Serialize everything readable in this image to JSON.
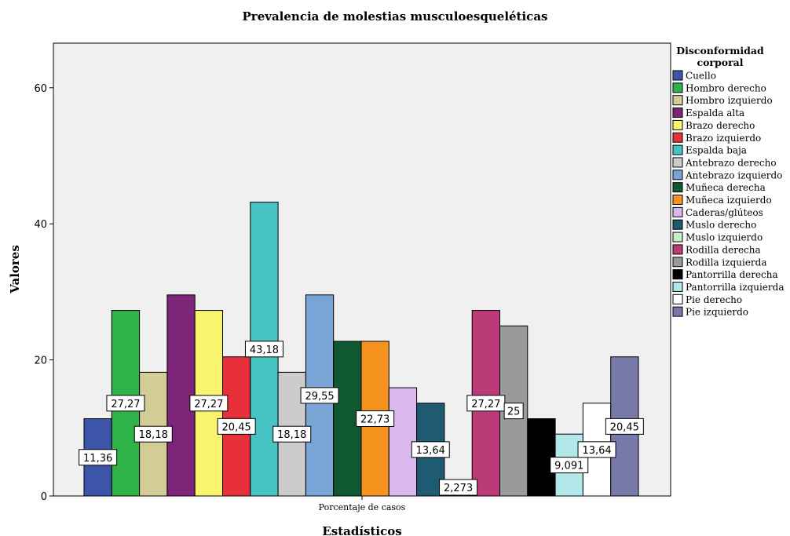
{
  "chart_data": {
    "type": "bar",
    "title": "Prevalencia de molestias musculoesqueléticas",
    "xlabel": "Estadísticos",
    "ylabel": "Valores",
    "categories": [
      "Porcentaje de casos"
    ],
    "ylim": [
      0,
      66
    ],
    "yticks": [
      0,
      20,
      40,
      60
    ],
    "grid": false,
    "legend": {
      "title": "Disconformidad corporal",
      "position": "right"
    },
    "series": [
      {
        "name": "Cuello",
        "value": 11.36,
        "label": "11,36",
        "color": "#3d55a8"
      },
      {
        "name": "Hombro derecho",
        "value": 27.27,
        "label": "27,27",
        "color": "#2fb348"
      },
      {
        "name": "Hombro izquierdo",
        "value": 18.18,
        "label": "18,18",
        "color": "#d4cc97"
      },
      {
        "name": "Espalda alta",
        "value": 29.55,
        "label": "",
        "color": "#7c2579"
      },
      {
        "name": "Brazo derecho",
        "value": 27.27,
        "label": "27,27",
        "color": "#f9f46e"
      },
      {
        "name": "Brazo izquierdo",
        "value": 20.45,
        "label": "20,45",
        "color": "#e8303a"
      },
      {
        "name": "Espalda baja",
        "value": 43.18,
        "label": "43,18",
        "color": "#48c3c4"
      },
      {
        "name": "Antebrazo derecho",
        "value": 18.18,
        "label": "18,18",
        "color": "#cccccc"
      },
      {
        "name": "Antebrazo izquierdo",
        "value": 29.55,
        "label": "29,55",
        "color": "#78a4d6"
      },
      {
        "name": "Muñeca derecha",
        "value": 22.73,
        "label": "",
        "color": "#0f5830"
      },
      {
        "name": "Muñeca izquierdo",
        "value": 22.73,
        "label": "22,73",
        "color": "#f6931e"
      },
      {
        "name": "Caderas/glúteos",
        "value": 15.91,
        "label": "",
        "color": "#dab8ec"
      },
      {
        "name": " Muslo derecho",
        "value": 13.64,
        "label": "13,64",
        "color": "#1e5a72"
      },
      {
        "name": "Muslo izquierdo",
        "value": 2.273,
        "label": "2,273",
        "color": "#c7f0c7"
      },
      {
        "name": "Rodilla derecha",
        "value": 27.27,
        "label": "27,27",
        "color": "#bb3b79"
      },
      {
        "name": "Rodilla izquierda",
        "value": 25,
        "label": "25",
        "color": "#9a9a9a"
      },
      {
        "name": "Pantorrilla derecha",
        "value": 11.36,
        "label": "",
        "color": "#000000"
      },
      {
        "name": "Pantorrilla izquierda",
        "value": 9.091,
        "label": "9,091",
        "color": "#b3e8ea"
      },
      {
        "name": "Pie derecho",
        "value": 13.64,
        "label": "13,64",
        "color": "#ffffff"
      },
      {
        "name": "Pie izquierdo",
        "value": 20.45,
        "label": "20,45",
        "color": "#7779a8"
      }
    ]
  }
}
